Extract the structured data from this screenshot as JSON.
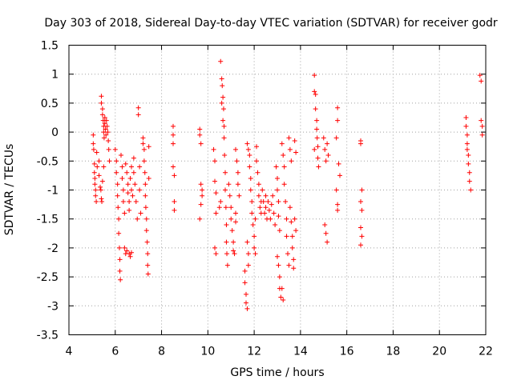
{
  "chart_data": {
    "type": "scatter",
    "title": "Day 303 of 2018, Sidereal Day-to-day VTEC variation (SDTVAR) for receiver godr",
    "xlabel": "GPS time / hours",
    "ylabel": "SDTVAR / TECUs",
    "xlim": [
      4,
      22
    ],
    "ylim": [
      -3.5,
      1.5
    ],
    "xticks": [
      "4",
      "6",
      "8",
      "10",
      "12",
      "14",
      "16",
      "18",
      "20",
      "22"
    ],
    "yticks": [
      "1.5",
      "1",
      "0.5",
      "0",
      "-0.5",
      "-1",
      "-1.5",
      "-2",
      "-2.5",
      "-3",
      "-3.5"
    ],
    "grid": true,
    "marker": "+",
    "color": "#ff0000",
    "series": [
      {
        "name": "SDTVAR",
        "points": [
          [
            5.05,
            -0.05
          ],
          [
            5.05,
            -0.2
          ],
          [
            5.07,
            -0.3
          ],
          [
            5.1,
            -0.55
          ],
          [
            5.1,
            -0.7
          ],
          [
            5.12,
            -0.8
          ],
          [
            5.12,
            -0.9
          ],
          [
            5.15,
            -1.0
          ],
          [
            5.15,
            -1.1
          ],
          [
            5.18,
            -1.2
          ],
          [
            5.2,
            -0.35
          ],
          [
            5.22,
            -0.6
          ],
          [
            5.4,
            0.62
          ],
          [
            5.4,
            0.5
          ],
          [
            5.45,
            0.4
          ],
          [
            5.45,
            0.3
          ],
          [
            5.48,
            0.2
          ],
          [
            5.5,
            0.1
          ],
          [
            5.5,
            0.0
          ],
          [
            5.52,
            -0.1
          ],
          [
            5.55,
            0.25
          ],
          [
            5.55,
            0.15
          ],
          [
            5.58,
            0.05
          ],
          [
            5.6,
            -0.05
          ],
          [
            5.62,
            0.2
          ],
          [
            5.65,
            0.1
          ],
          [
            5.68,
            0.0
          ],
          [
            5.7,
            -0.15
          ],
          [
            5.72,
            -0.3
          ],
          [
            5.75,
            -0.5
          ],
          [
            5.3,
            -0.5
          ],
          [
            5.3,
            -0.75
          ],
          [
            5.35,
            -0.95
          ],
          [
            5.38,
            -1.0
          ],
          [
            5.4,
            -1.15
          ],
          [
            5.42,
            -1.2
          ],
          [
            5.45,
            -0.85
          ],
          [
            5.5,
            -0.6
          ],
          [
            6.0,
            -0.3
          ],
          [
            6.05,
            -0.5
          ],
          [
            6.05,
            -0.7
          ],
          [
            6.1,
            -0.9
          ],
          [
            6.1,
            -1.1
          ],
          [
            6.12,
            -1.3
          ],
          [
            6.15,
            -1.5
          ],
          [
            6.15,
            -1.75
          ],
          [
            6.18,
            -2.0
          ],
          [
            6.2,
            -2.2
          ],
          [
            6.2,
            -2.4
          ],
          [
            6.22,
            -2.55
          ],
          [
            6.25,
            -0.4
          ],
          [
            6.3,
            -0.6
          ],
          [
            6.3,
            -0.8
          ],
          [
            6.35,
            -1.0
          ],
          [
            6.35,
            -1.2
          ],
          [
            6.4,
            -1.4
          ],
          [
            6.4,
            -2.0
          ],
          [
            6.45,
            -2.1
          ],
          [
            6.45,
            -0.55
          ],
          [
            6.5,
            -0.7
          ],
          [
            6.55,
            -0.9
          ],
          [
            6.55,
            -1.05
          ],
          [
            6.6,
            -1.2
          ],
          [
            6.6,
            -1.35
          ],
          [
            6.65,
            -0.8
          ],
          [
            6.7,
            -0.6
          ],
          [
            6.7,
            -1.0
          ],
          [
            6.75,
            -1.1
          ],
          [
            6.5,
            -2.05
          ],
          [
            6.6,
            -2.1
          ],
          [
            6.65,
            -2.15
          ],
          [
            6.7,
            -2.08
          ],
          [
            6.8,
            -0.45
          ],
          [
            6.8,
            -0.7
          ],
          [
            6.85,
            -0.9
          ],
          [
            6.9,
            -1.2
          ],
          [
            6.95,
            -1.5
          ],
          [
            7.0,
            0.42
          ],
          [
            7.0,
            0.3
          ],
          [
            7.05,
            -0.6
          ],
          [
            7.05,
            -1.0
          ],
          [
            7.1,
            -1.4
          ],
          [
            7.2,
            -0.1
          ],
          [
            7.2,
            -0.2
          ],
          [
            7.25,
            -0.3
          ],
          [
            7.25,
            -0.5
          ],
          [
            7.28,
            -0.7
          ],
          [
            7.3,
            -0.9
          ],
          [
            7.3,
            -1.1
          ],
          [
            7.32,
            -1.3
          ],
          [
            7.35,
            -1.5
          ],
          [
            7.35,
            -1.7
          ],
          [
            7.38,
            -1.9
          ],
          [
            7.4,
            -2.1
          ],
          [
            7.4,
            -2.3
          ],
          [
            7.42,
            -2.45
          ],
          [
            7.45,
            -0.25
          ],
          [
            7.45,
            -0.8
          ],
          [
            8.5,
            0.1
          ],
          [
            8.5,
            -0.05
          ],
          [
            8.5,
            -0.2
          ],
          [
            8.5,
            -0.6
          ],
          [
            8.55,
            -0.75
          ],
          [
            8.55,
            -1.2
          ],
          [
            8.55,
            -1.35
          ],
          [
            9.65,
            0.05
          ],
          [
            9.65,
            -0.05
          ],
          [
            9.7,
            -0.2
          ],
          [
            9.7,
            -0.9
          ],
          [
            9.75,
            -1.0
          ],
          [
            9.75,
            -1.1
          ],
          [
            9.7,
            -1.25
          ],
          [
            9.65,
            -1.5
          ],
          [
            10.25,
            -0.3
          ],
          [
            10.3,
            -0.5
          ],
          [
            10.3,
            -0.85
          ],
          [
            10.35,
            -1.05
          ],
          [
            10.35,
            -1.4
          ],
          [
            10.3,
            -2.0
          ],
          [
            10.35,
            -2.1
          ],
          [
            10.55,
            1.22
          ],
          [
            10.6,
            0.92
          ],
          [
            10.62,
            0.8
          ],
          [
            10.65,
            0.6
          ],
          [
            10.68,
            0.4
          ],
          [
            10.7,
            0.1
          ],
          [
            10.7,
            -0.1
          ],
          [
            10.72,
            -0.4
          ],
          [
            10.75,
            -0.7
          ],
          [
            10.75,
            -1.0
          ],
          [
            10.78,
            -1.3
          ],
          [
            10.8,
            -1.6
          ],
          [
            10.8,
            -1.9
          ],
          [
            10.82,
            -2.1
          ],
          [
            10.85,
            -2.3
          ],
          [
            10.6,
            0.5
          ],
          [
            10.65,
            0.2
          ],
          [
            10.5,
            -1.3
          ],
          [
            10.55,
            -1.2
          ],
          [
            10.9,
            -0.9
          ],
          [
            10.95,
            -1.1
          ],
          [
            11.0,
            -1.3
          ],
          [
            11.0,
            -1.5
          ],
          [
            11.05,
            -1.7
          ],
          [
            11.1,
            -1.9
          ],
          [
            11.1,
            -2.05
          ],
          [
            11.15,
            -2.1
          ],
          [
            11.2,
            -1.4
          ],
          [
            11.2,
            -1.55
          ],
          [
            11.2,
            -0.3
          ],
          [
            11.25,
            -0.5
          ],
          [
            11.3,
            -0.7
          ],
          [
            11.3,
            -0.9
          ],
          [
            11.35,
            -1.1
          ],
          [
            11.6,
            -2.4
          ],
          [
            11.6,
            -2.6
          ],
          [
            11.65,
            -2.8
          ],
          [
            11.65,
            -2.95
          ],
          [
            11.7,
            -3.05
          ],
          [
            11.7,
            -1.9
          ],
          [
            11.75,
            -2.1
          ],
          [
            11.75,
            -2.3
          ],
          [
            11.7,
            -0.2
          ],
          [
            11.75,
            -0.3
          ],
          [
            11.8,
            -0.4
          ],
          [
            11.8,
            -0.6
          ],
          [
            11.85,
            -0.8
          ],
          [
            11.85,
            -1.0
          ],
          [
            11.9,
            -1.2
          ],
          [
            11.9,
            -1.4
          ],
          [
            11.95,
            -1.6
          ],
          [
            12.0,
            -1.8
          ],
          [
            12.0,
            -2.0
          ],
          [
            12.05,
            -2.1
          ],
          [
            12.05,
            -1.5
          ],
          [
            12.1,
            -0.25
          ],
          [
            12.1,
            -0.5
          ],
          [
            12.15,
            -0.7
          ],
          [
            12.2,
            -0.9
          ],
          [
            12.2,
            -1.1
          ],
          [
            12.25,
            -1.3
          ],
          [
            12.3,
            -1.2
          ],
          [
            12.3,
            -1.4
          ],
          [
            12.35,
            -1.0
          ],
          [
            12.4,
            -1.2
          ],
          [
            12.45,
            -1.4
          ],
          [
            12.5,
            -1.1
          ],
          [
            12.5,
            -1.3
          ],
          [
            12.55,
            -1.5
          ],
          [
            12.6,
            -1.2
          ],
          [
            12.65,
            -1.35
          ],
          [
            12.7,
            -1.5
          ],
          [
            12.75,
            -1.25
          ],
          [
            12.8,
            -1.1
          ],
          [
            12.85,
            -1.4
          ],
          [
            12.9,
            -1.6
          ],
          [
            12.95,
            -0.6
          ],
          [
            13.0,
            -0.8
          ],
          [
            13.0,
            -1.0
          ],
          [
            13.05,
            -1.2
          ],
          [
            13.05,
            -1.45
          ],
          [
            13.1,
            -1.7
          ],
          [
            13.0,
            -2.15
          ],
          [
            13.05,
            -2.3
          ],
          [
            13.1,
            -2.5
          ],
          [
            13.1,
            -2.7
          ],
          [
            13.15,
            -2.85
          ],
          [
            13.2,
            -2.7
          ],
          [
            13.25,
            -2.9
          ],
          [
            13.2,
            -0.2
          ],
          [
            13.25,
            -0.4
          ],
          [
            13.3,
            -0.6
          ],
          [
            13.3,
            -0.9
          ],
          [
            13.35,
            -1.2
          ],
          [
            13.4,
            -1.5
          ],
          [
            13.4,
            -1.8
          ],
          [
            13.45,
            -2.1
          ],
          [
            13.5,
            -2.3
          ],
          [
            13.5,
            -0.1
          ],
          [
            13.55,
            -0.3
          ],
          [
            13.6,
            -0.5
          ],
          [
            13.55,
            -1.3
          ],
          [
            13.6,
            -1.55
          ],
          [
            13.65,
            -1.8
          ],
          [
            13.65,
            -2.0
          ],
          [
            13.7,
            -2.2
          ],
          [
            13.7,
            -2.35
          ],
          [
            13.75,
            -0.15
          ],
          [
            13.8,
            -0.35
          ],
          [
            13.75,
            -1.5
          ],
          [
            13.8,
            -1.7
          ],
          [
            14.6,
            0.98
          ],
          [
            14.6,
            0.7
          ],
          [
            14.65,
            0.65
          ],
          [
            14.65,
            0.4
          ],
          [
            14.7,
            0.2
          ],
          [
            14.7,
            0.05
          ],
          [
            14.72,
            -0.1
          ],
          [
            14.75,
            -0.25
          ],
          [
            14.75,
            -0.45
          ],
          [
            14.78,
            -0.6
          ],
          [
            14.6,
            -0.3
          ],
          [
            15.0,
            -0.1
          ],
          [
            15.05,
            -0.3
          ],
          [
            15.1,
            -0.5
          ],
          [
            15.05,
            -1.6
          ],
          [
            15.1,
            -1.75
          ],
          [
            15.15,
            -1.9
          ],
          [
            15.15,
            -0.2
          ],
          [
            15.2,
            -0.4
          ],
          [
            15.6,
            0.42
          ],
          [
            15.6,
            0.2
          ],
          [
            15.55,
            -0.1
          ],
          [
            15.55,
            -1.0
          ],
          [
            15.6,
            -1.25
          ],
          [
            15.6,
            -1.35
          ],
          [
            15.65,
            -0.55
          ],
          [
            15.7,
            -0.75
          ],
          [
            16.6,
            -0.15
          ],
          [
            16.6,
            -0.2
          ],
          [
            16.65,
            -1.0
          ],
          [
            16.6,
            -1.2
          ],
          [
            16.65,
            -1.35
          ],
          [
            16.6,
            -1.65
          ],
          [
            16.65,
            -1.8
          ],
          [
            16.6,
            -1.95
          ],
          [
            21.15,
            0.25
          ],
          [
            21.15,
            0.1
          ],
          [
            21.2,
            -0.05
          ],
          [
            21.2,
            -0.2
          ],
          [
            21.25,
            -0.4
          ],
          [
            21.25,
            -0.55
          ],
          [
            21.3,
            -0.7
          ],
          [
            21.3,
            -0.85
          ],
          [
            21.35,
            -1.0
          ],
          [
            21.2,
            -0.3
          ],
          [
            21.75,
            0.98
          ],
          [
            21.8,
            0.88
          ],
          [
            21.8,
            0.2
          ],
          [
            21.85,
            0.1
          ],
          [
            21.85,
            -0.05
          ]
        ]
      }
    ]
  }
}
